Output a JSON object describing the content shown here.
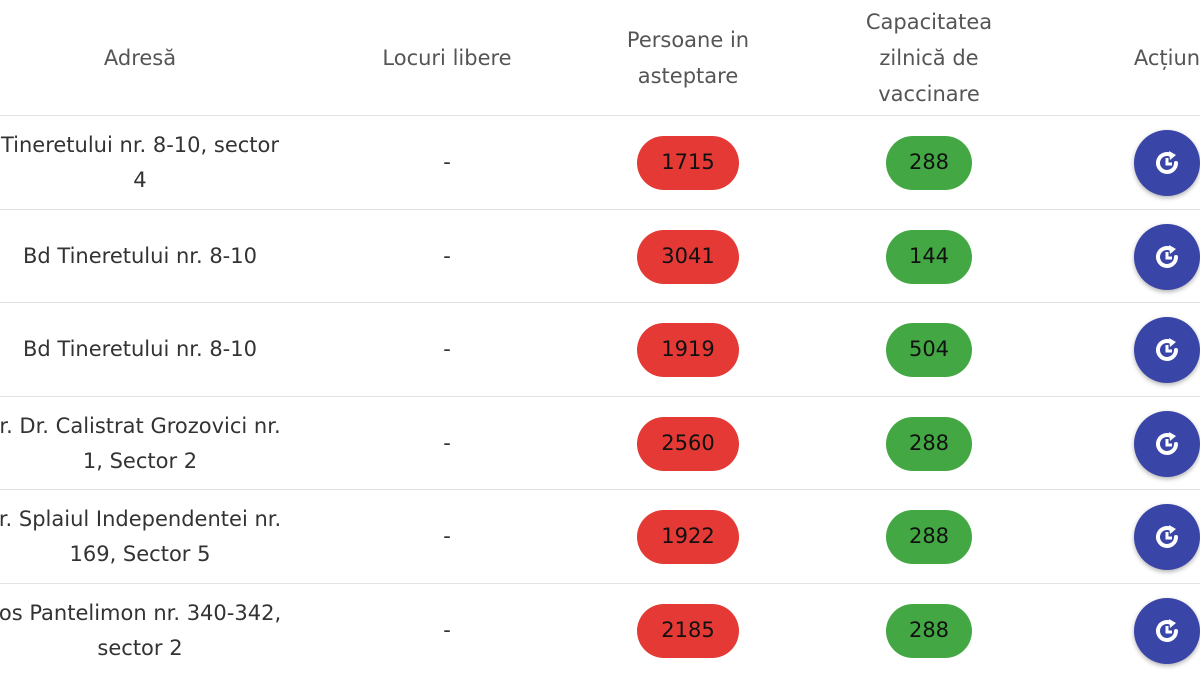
{
  "table": {
    "headers": [
      "Adresă",
      "Locuri libere",
      "Persoane in asteptare",
      "Capacitatea zilnică de vaccinare",
      "Acțiun"
    ],
    "rows": [
      [
        [
          "Tineretului nr. 8-10, sector",
          "4"
        ],
        "-",
        1715,
        288
      ],
      [
        [
          "Bd Tineretului nr. 8-10"
        ],
        "-",
        3041,
        144
      ],
      [
        [
          "Bd Tineretului nr. 8-10"
        ],
        "-",
        1919,
        504
      ],
      [
        [
          "r. Dr. Calistrat Grozovici nr.",
          "1, Sector 2"
        ],
        "-",
        2560,
        288
      ],
      [
        [
          "r. Splaiul Independentei nr.",
          "169, Sector 5"
        ],
        "-",
        1922,
        288
      ],
      [
        [
          "os Pantelimon nr. 340-342,",
          "sector 2"
        ],
        "-",
        2185,
        288
      ]
    ]
  }
}
